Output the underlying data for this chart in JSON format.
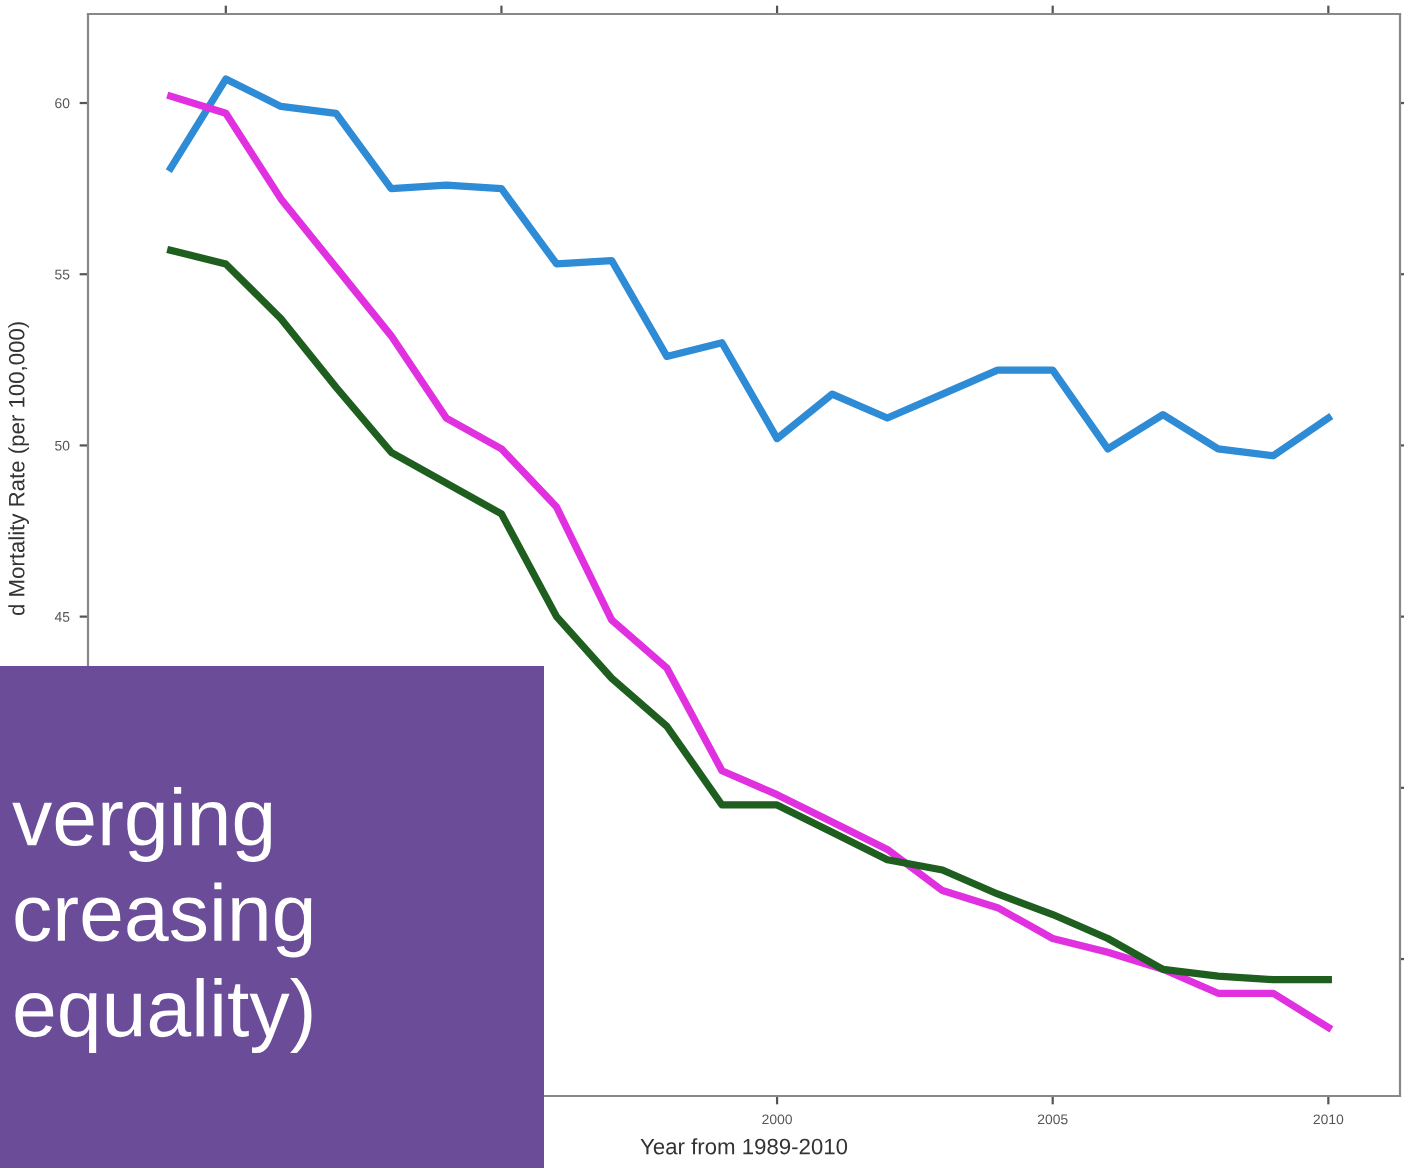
{
  "chart_data": {
    "type": "line",
    "xlabel": "Year from 1989-2010",
    "ylabel": "d Mortality Rate (per 100,000)",
    "x": [
      1989,
      1990,
      1991,
      1992,
      1993,
      1994,
      1995,
      1996,
      1997,
      1998,
      1999,
      2000,
      2001,
      2002,
      2003,
      2004,
      2005,
      2006,
      2007,
      2008,
      2009,
      2010
    ],
    "series": [
      {
        "color": "#2e8bd6",
        "values": [
          58.1,
          60.7,
          59.9,
          59.7,
          57.5,
          57.6,
          57.5,
          55.3,
          55.4,
          52.6,
          53.0,
          50.2,
          51.5,
          50.8,
          51.5,
          52.2,
          52.2,
          49.9,
          50.9,
          49.9,
          49.7,
          50.8
        ]
      },
      {
        "color": "#e030e0",
        "values": [
          60.2,
          59.7,
          57.2,
          55.2,
          53.2,
          50.8,
          49.9,
          48.2,
          44.9,
          43.5,
          40.5,
          39.8,
          39.0,
          38.2,
          37.0,
          36.5,
          35.6,
          35.2,
          34.7,
          34.0,
          34.0,
          33.0
        ]
      },
      {
        "color": "#1e5e1e",
        "values": [
          55.7,
          55.3,
          53.7,
          51.7,
          49.8,
          48.9,
          48.0,
          45.0,
          43.2,
          41.8,
          39.5,
          39.5,
          38.7,
          37.9,
          37.6,
          36.9,
          36.3,
          35.6,
          34.7,
          34.5,
          34.4,
          34.4
        ]
      }
    ],
    "xlim": [
      1987.5,
      2011.3
    ],
    "ylim": [
      31,
      62.6
    ],
    "xticks": [
      {
        "value": 1990,
        "label": null
      },
      {
        "value": 1995,
        "label": null
      },
      2000,
      2005,
      2010
    ],
    "yticks": [
      {
        "value": 35,
        "label": null
      },
      {
        "value": 40,
        "label": null
      },
      45,
      50,
      55,
      60
    ],
    "grid": false,
    "legend": false,
    "marker": "none",
    "line_style": "solid",
    "annotations": [
      "verging\ncreasing\nequality)"
    ]
  }
}
